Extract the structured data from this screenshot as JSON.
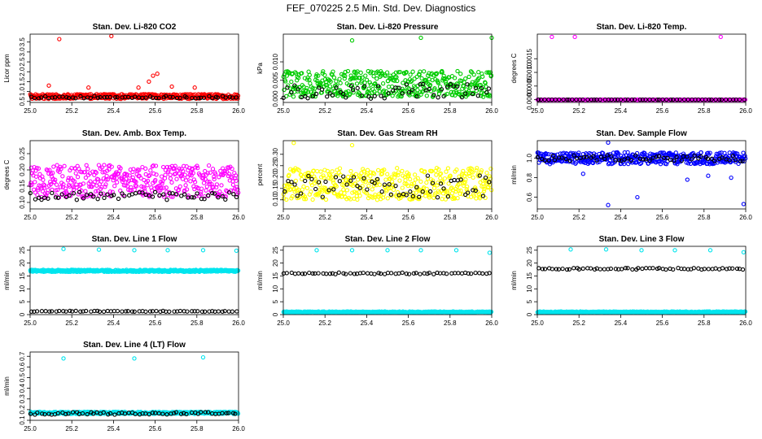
{
  "title": "FEF_070225  2.5 Min. Std. Dev. Diagnostics",
  "chart_data": [
    {
      "type": "scatter",
      "title": "Stan. Dev. Li-820 CO2",
      "ylabel": "Licor ppm",
      "xlim": [
        25.0,
        26.0
      ],
      "ylim": [
        0.45,
        3.9
      ],
      "xticks": [
        25.0,
        25.2,
        25.4,
        25.6,
        25.8,
        26.0
      ],
      "xtick_labels": [
        "25.0",
        "25.2",
        "25.4",
        "25.6",
        "25.8",
        "26.0"
      ],
      "yticks": [
        0.5,
        1.0,
        1.5,
        2.0,
        2.5,
        3.0,
        3.5
      ],
      "ytick_labels": [
        "0.5",
        "1.0",
        "1.5",
        "2.0",
        "2.5",
        "3.0",
        "3.5"
      ],
      "series": [
        {
          "color": "#ff0000",
          "base": 0.75,
          "spread": 0.12,
          "n": 420
        },
        {
          "color": "#000000",
          "base": 0.72,
          "spread": 0.06,
          "n": 60
        }
      ],
      "outliers": [
        {
          "x": 25.14,
          "y": 3.65,
          "color": "#ff0000"
        },
        {
          "x": 25.39,
          "y": 3.8,
          "color": "#ff0000"
        },
        {
          "x": 25.57,
          "y": 1.5,
          "color": "#ff0000"
        },
        {
          "x": 25.59,
          "y": 1.8,
          "color": "#ff0000"
        },
        {
          "x": 25.61,
          "y": 1.9,
          "color": "#ff0000"
        },
        {
          "x": 25.09,
          "y": 1.3,
          "color": "#ff0000"
        },
        {
          "x": 25.28,
          "y": 1.2,
          "color": "#ff0000"
        },
        {
          "x": 25.52,
          "y": 1.2,
          "color": "#ff0000"
        },
        {
          "x": 25.68,
          "y": 1.25,
          "color": "#ff0000"
        },
        {
          "x": 25.79,
          "y": 1.2,
          "color": "#ff0000"
        }
      ]
    },
    {
      "type": "scatter",
      "title": "Stan. Dev. Li-820 Pressure",
      "ylabel": "kPa",
      "xlim": [
        25.0,
        26.0
      ],
      "ylim": [
        -0.001,
        0.0175
      ],
      "xticks": [
        25.0,
        25.2,
        25.4,
        25.6,
        25.8,
        26.0
      ],
      "xtick_labels": [
        "25.0",
        "25.2",
        "25.4",
        "25.6",
        "25.8",
        "26.0"
      ],
      "yticks": [
        0.0,
        0.005,
        0.01
      ],
      "ytick_labels": [
        "0.000",
        "0.005",
        "0.010"
      ],
      "series": [
        {
          "color": "#00cc00",
          "base": 0.004,
          "spread": 0.0035,
          "n": 420
        },
        {
          "color": "#000000",
          "base": 0.002,
          "spread": 0.002,
          "n": 60
        }
      ],
      "outliers": [
        {
          "x": 25.33,
          "y": 0.0158,
          "color": "#00cc00"
        },
        {
          "x": 25.66,
          "y": 0.0165,
          "color": "#00cc00"
        },
        {
          "x": 26.0,
          "y": 0.0165,
          "color": "#00cc00"
        }
      ]
    },
    {
      "type": "scatter",
      "title": "Stan. Dev. Li-820 Temp.",
      "ylabel": "degrees C",
      "xlim": [
        25.0,
        26.0
      ],
      "ylim": [
        -0.0001,
        0.0024
      ],
      "xticks": [
        25.0,
        25.2,
        25.4,
        25.6,
        25.8,
        26.0
      ],
      "xtick_labels": [
        "25.0",
        "25.2",
        "25.4",
        "25.6",
        "25.8",
        "26.0"
      ],
      "yticks": [
        0.0,
        0.0005,
        0.001,
        0.0015
      ],
      "ytick_labels": [
        "0.0000",
        "0.0005",
        "0.0010",
        "0.0015"
      ],
      "series": [
        {
          "color": "#ff00ff",
          "base": 0.0,
          "spread": 0.0,
          "n": 420
        },
        {
          "color": "#000000",
          "base": 0.0,
          "spread": 0.0,
          "n": 60
        }
      ],
      "outliers": [
        {
          "x": 25.07,
          "y": 0.0023,
          "color": "#ff00ff"
        },
        {
          "x": 25.18,
          "y": 0.0023,
          "color": "#ff00ff"
        },
        {
          "x": 25.88,
          "y": 0.0023,
          "color": "#ff00ff"
        }
      ]
    },
    {
      "type": "scatter",
      "title": "Stan. Dev. Amb. Box Temp.",
      "ylabel": "degrees C",
      "xlim": [
        25.0,
        26.0
      ],
      "ylim": [
        0.08,
        0.29
      ],
      "xticks": [
        25.0,
        25.2,
        25.4,
        25.6,
        25.8,
        26.0
      ],
      "xtick_labels": [
        "25.0",
        "25.2",
        "25.4",
        "25.6",
        "25.8",
        "26.0"
      ],
      "yticks": [
        0.1,
        0.15,
        0.2,
        0.25
      ],
      "ytick_labels": [
        "0.10",
        "0.15",
        "0.20",
        "0.25"
      ],
      "series": [
        {
          "color": "#ff00ff",
          "base": 0.165,
          "spread": 0.05,
          "n": 420
        },
        {
          "color": "#000000",
          "base": 0.12,
          "spread": 0.012,
          "n": 60
        }
      ],
      "outliers": []
    },
    {
      "type": "scatter",
      "title": "Stan. Dev. Gas Stream RH",
      "ylabel": "percent",
      "xlim": [
        25.0,
        26.0
      ],
      "ylim": [
        0.06,
        0.36
      ],
      "xticks": [
        25.0,
        25.2,
        25.4,
        25.6,
        25.8,
        26.0
      ],
      "xtick_labels": [
        "25.0",
        "25.2",
        "25.4",
        "25.6",
        "25.8",
        "26.0"
      ],
      "yticks": [
        0.1,
        0.15,
        0.2,
        0.25,
        0.3
      ],
      "ytick_labels": [
        "0.10",
        "0.15",
        "0.20",
        "0.25",
        "0.30"
      ],
      "series": [
        {
          "color": "#ffff00",
          "base": 0.17,
          "spread": 0.07,
          "n": 420
        },
        {
          "color": "#000000",
          "base": 0.16,
          "spread": 0.05,
          "n": 60
        }
      ],
      "outliers": [
        {
          "x": 25.05,
          "y": 0.35,
          "color": "#ffff00"
        },
        {
          "x": 25.33,
          "y": 0.34,
          "color": "#ffff00"
        }
      ]
    },
    {
      "type": "scatter",
      "title": "Stan. Dev. Sample Flow",
      "ylabel": "ml/min",
      "xlim": [
        25.0,
        26.0
      ],
      "ylim": [
        0.48,
        1.18
      ],
      "xticks": [
        25.0,
        25.2,
        25.4,
        25.6,
        25.8,
        26.0
      ],
      "xtick_labels": [
        "25.0",
        "25.2",
        "25.4",
        "25.6",
        "25.8",
        "26.0"
      ],
      "yticks": [
        0.6,
        0.8,
        1.0
      ],
      "ytick_labels": [
        "0.6",
        "0.8",
        "1.0"
      ],
      "series": [
        {
          "color": "#0000ff",
          "base": 1.0,
          "spread": 0.06,
          "n": 420
        },
        {
          "color": "#000000",
          "base": 1.0,
          "spread": 0.03,
          "n": 60
        }
      ],
      "outliers": [
        {
          "x": 25.34,
          "y": 1.16,
          "color": "#0000ff"
        },
        {
          "x": 25.34,
          "y": 0.52,
          "color": "#0000ff"
        },
        {
          "x": 25.48,
          "y": 0.6,
          "color": "#0000ff"
        },
        {
          "x": 25.99,
          "y": 0.53,
          "color": "#0000ff"
        },
        {
          "x": 25.72,
          "y": 0.78,
          "color": "#0000ff"
        },
        {
          "x": 25.82,
          "y": 0.82,
          "color": "#0000ff"
        },
        {
          "x": 25.22,
          "y": 0.84,
          "color": "#0000ff"
        },
        {
          "x": 25.93,
          "y": 0.8,
          "color": "#0000ff"
        }
      ]
    },
    {
      "type": "scatter",
      "title": "Stan. Dev. Line 1 Flow",
      "ylabel": "ml/min",
      "xlim": [
        25.0,
        26.0
      ],
      "ylim": [
        0,
        26.5
      ],
      "xticks": [
        25.0,
        25.2,
        25.4,
        25.6,
        25.8,
        26.0
      ],
      "xtick_labels": [
        "25.0",
        "25.2",
        "25.4",
        "25.6",
        "25.8",
        "26.0"
      ],
      "yticks": [
        0,
        5,
        10,
        15,
        20,
        25
      ],
      "ytick_labels": [
        "0",
        "5",
        "10",
        "15",
        "20",
        "25"
      ],
      "series": [
        {
          "color": "#00e5ee",
          "base": 17,
          "spread": 0.4,
          "n": 420
        },
        {
          "color": "#000000",
          "base": 1.3,
          "spread": 0.15,
          "n": 60
        }
      ],
      "outliers": [
        {
          "x": 25.16,
          "y": 25.5,
          "color": "#00e5ee"
        },
        {
          "x": 25.33,
          "y": 25.2,
          "color": "#00e5ee"
        },
        {
          "x": 25.5,
          "y": 25.0,
          "color": "#00e5ee"
        },
        {
          "x": 25.66,
          "y": 25.0,
          "color": "#00e5ee"
        },
        {
          "x": 25.83,
          "y": 25.0,
          "color": "#00e5ee"
        },
        {
          "x": 25.99,
          "y": 24.8,
          "color": "#00e5ee"
        }
      ]
    },
    {
      "type": "scatter",
      "title": "Stan. Dev. Line 2 Flow",
      "ylabel": "ml/min",
      "xlim": [
        25.0,
        26.0
      ],
      "ylim": [
        0,
        26.5
      ],
      "xticks": [
        25.0,
        25.2,
        25.4,
        25.6,
        25.8,
        26.0
      ],
      "xtick_labels": [
        "25.0",
        "25.2",
        "25.4",
        "25.6",
        "25.8",
        "26.0"
      ],
      "yticks": [
        0,
        5,
        10,
        15,
        20,
        25
      ],
      "ytick_labels": [
        "0",
        "5",
        "10",
        "15",
        "20",
        "25"
      ],
      "series": [
        {
          "color": "#00e5ee",
          "base": 1.0,
          "spread": 0.2,
          "n": 420
        },
        {
          "color": "#000000",
          "base": 16,
          "spread": 0.3,
          "n": 60
        }
      ],
      "outliers": [
        {
          "x": 25.16,
          "y": 25.0,
          "color": "#00e5ee"
        },
        {
          "x": 25.33,
          "y": 25.0,
          "color": "#00e5ee"
        },
        {
          "x": 25.5,
          "y": 25.0,
          "color": "#00e5ee"
        },
        {
          "x": 25.66,
          "y": 25.0,
          "color": "#00e5ee"
        },
        {
          "x": 25.83,
          "y": 25.0,
          "color": "#00e5ee"
        },
        {
          "x": 25.99,
          "y": 24.0,
          "color": "#00e5ee"
        }
      ]
    },
    {
      "type": "scatter",
      "title": "Stan. Dev. Line 3 Flow",
      "ylabel": "ml/min",
      "xlim": [
        25.0,
        26.0
      ],
      "ylim": [
        0,
        26.5
      ],
      "xticks": [
        25.0,
        25.2,
        25.4,
        25.6,
        25.8,
        26.0
      ],
      "xtick_labels": [
        "25.0",
        "25.2",
        "25.4",
        "25.6",
        "25.8",
        "26.0"
      ],
      "yticks": [
        0,
        5,
        10,
        15,
        20,
        25
      ],
      "ytick_labels": [
        "0",
        "5",
        "10",
        "15",
        "20",
        "25"
      ],
      "series": [
        {
          "color": "#00e5ee",
          "base": 1.0,
          "spread": 0.2,
          "n": 420
        },
        {
          "color": "#000000",
          "base": 17.8,
          "spread": 0.3,
          "n": 60
        }
      ],
      "outliers": [
        {
          "x": 25.16,
          "y": 25.3,
          "color": "#00e5ee"
        },
        {
          "x": 25.33,
          "y": 25.3,
          "color": "#00e5ee"
        },
        {
          "x": 25.5,
          "y": 25.0,
          "color": "#00e5ee"
        },
        {
          "x": 25.66,
          "y": 25.0,
          "color": "#00e5ee"
        },
        {
          "x": 25.83,
          "y": 25.0,
          "color": "#00e5ee"
        },
        {
          "x": 25.99,
          "y": 24.2,
          "color": "#00e5ee"
        }
      ]
    },
    {
      "type": "scatter",
      "title": "Stan. Dev. Line 4 (LT) Flow",
      "ylabel": "ml/min",
      "xlim": [
        25.0,
        26.0
      ],
      "ylim": [
        0.1,
        0.74
      ],
      "xticks": [
        25.0,
        25.2,
        25.4,
        25.6,
        25.8,
        26.0
      ],
      "xtick_labels": [
        "25.0",
        "25.2",
        "25.4",
        "25.6",
        "25.8",
        "26.0"
      ],
      "yticks": [
        0.1,
        0.2,
        0.3,
        0.4,
        0.5,
        0.6,
        0.7
      ],
      "ytick_labels": [
        "0.1",
        "0.2",
        "0.3",
        "0.4",
        "0.5",
        "0.6",
        "0.7"
      ],
      "series": [
        {
          "color": "#00e5ee",
          "base": 0.17,
          "spread": 0.01,
          "n": 420
        },
        {
          "color": "#000000",
          "base": 0.165,
          "spread": 0.012,
          "n": 60
        }
      ],
      "outliers": [
        {
          "x": 25.16,
          "y": 0.68,
          "color": "#00e5ee"
        },
        {
          "x": 25.5,
          "y": 0.68,
          "color": "#00e5ee"
        },
        {
          "x": 25.83,
          "y": 0.69,
          "color": "#00e5ee"
        }
      ]
    }
  ]
}
